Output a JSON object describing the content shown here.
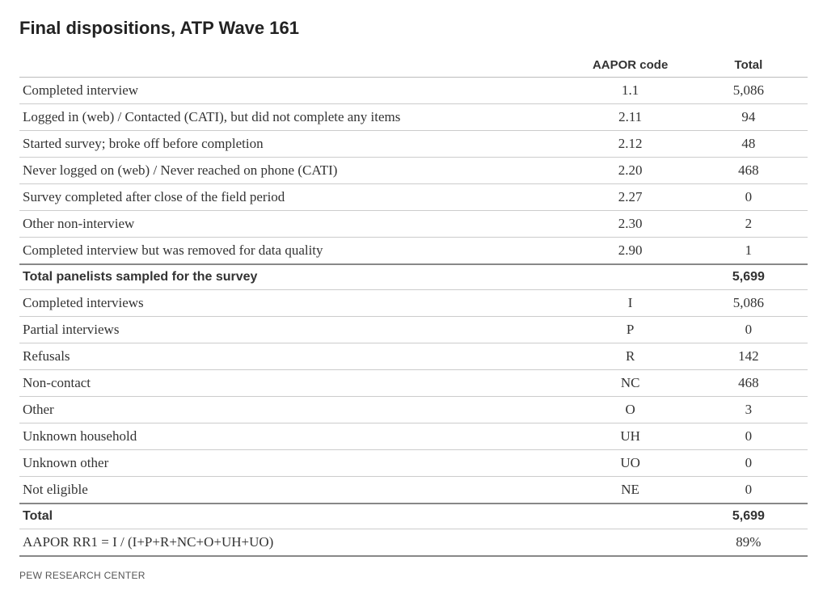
{
  "title": "Final dispositions, ATP Wave 161",
  "columns": {
    "label": "",
    "code": "AAPOR code",
    "total": "Total"
  },
  "section1": {
    "rows": [
      {
        "label": "Completed interview",
        "code": "1.1",
        "total": "5,086"
      },
      {
        "label": "Logged in (web) / Contacted (CATI), but did not complete any items",
        "code": "2.11",
        "total": "94"
      },
      {
        "label": "Started survey; broke off before completion",
        "code": "2.12",
        "total": "48"
      },
      {
        "label": "Never logged on (web) / Never reached on phone (CATI)",
        "code": "2.20",
        "total": "468"
      },
      {
        "label": "Survey completed after close of the field period",
        "code": "2.27",
        "total": "0"
      },
      {
        "label": "Other non-interview",
        "code": "2.30",
        "total": "2"
      },
      {
        "label": "Completed interview but was removed for data quality",
        "code": "2.90",
        "total": "1"
      }
    ],
    "summary": {
      "label": "Total panelists sampled for the survey",
      "code": "",
      "total": "5,699"
    }
  },
  "section2": {
    "rows": [
      {
        "label": "Completed interviews",
        "code": "I",
        "total": "5,086"
      },
      {
        "label": "Partial interviews",
        "code": "P",
        "total": "0"
      },
      {
        "label": "Refusals",
        "code": "R",
        "total": "142"
      },
      {
        "label": "Non-contact",
        "code": "NC",
        "total": "468"
      },
      {
        "label": "Other",
        "code": "O",
        "total": "3"
      },
      {
        "label": "Unknown household",
        "code": "UH",
        "total": "0"
      },
      {
        "label": "Unknown other",
        "code": "UO",
        "total": "0"
      },
      {
        "label": "Not eligible",
        "code": "NE",
        "total": "0"
      }
    ],
    "summary": {
      "label": "Total",
      "code": "",
      "total": "5,699"
    }
  },
  "formula_row": {
    "label": "AAPOR RR1 = I / (I+P+R+NC+O+UH+UO)",
    "code": "",
    "total": "89%"
  },
  "footer": "PEW RESEARCH CENTER"
}
